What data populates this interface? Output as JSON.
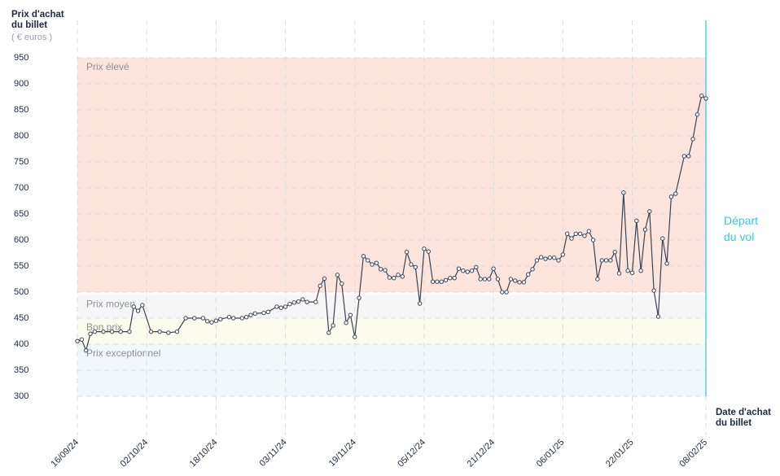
{
  "chart_data": {
    "type": "line",
    "y_title": "Prix d'achat du billet",
    "y_unit": "( € euros )",
    "x_title": "Date d'achat du billet",
    "ylim": [
      300,
      950
    ],
    "yticks": [
      300,
      350,
      400,
      450,
      500,
      550,
      600,
      650,
      700,
      750,
      800,
      850,
      900,
      950
    ],
    "xlim": [
      "2024-09-16",
      "2025-02-08"
    ],
    "xticks": [
      {
        "value": "2024-09-16",
        "label": "16/09/24"
      },
      {
        "value": "2024-10-02",
        "label": "02/10/24"
      },
      {
        "value": "2024-10-18",
        "label": "18/10/24"
      },
      {
        "value": "2024-11-03",
        "label": "03/11/24"
      },
      {
        "value": "2024-11-19",
        "label": "19/11/24"
      },
      {
        "value": "2024-12-05",
        "label": "05/12/24"
      },
      {
        "value": "2024-12-21",
        "label": "21/12/24"
      },
      {
        "value": "2025-01-06",
        "label": "06/01/25"
      },
      {
        "value": "2025-01-22",
        "label": "22/01/25"
      },
      {
        "value": "2025-02-08",
        "label": "08/02/25"
      }
    ],
    "grid": true,
    "bands": [
      {
        "name": "Prix élevé",
        "from": 500,
        "to": 950,
        "color": "#fde5de"
      },
      {
        "name": "Prix moyen",
        "from": 450,
        "to": 495,
        "color": "#f6f6f6"
      },
      {
        "name": "Bon prix",
        "from": 400,
        "to": 450,
        "color": "#fbfbee"
      },
      {
        "name": "Prix exceptionnel",
        "from": 300,
        "to": 400,
        "color": "#f0f8fc"
      }
    ],
    "marker_line": {
      "x": "2025-02-08",
      "label": "Départ du vol",
      "color": "#3ec7e0"
    },
    "series": [
      {
        "color": "#3a4356",
        "x": [
          "2024-09-16",
          "2024-09-17",
          "2024-09-18",
          "2024-09-19",
          "2024-09-20",
          "2024-09-22",
          "2024-09-24",
          "2024-09-26",
          "2024-09-28",
          "2024-09-29",
          "2024-09-30",
          "2024-10-01",
          "2024-10-03",
          "2024-10-05",
          "2024-10-07",
          "2024-10-09",
          "2024-10-11",
          "2024-10-13",
          "2024-10-15",
          "2024-10-16",
          "2024-10-17",
          "2024-10-18",
          "2024-10-19",
          "2024-10-21",
          "2024-10-22",
          "2024-10-24",
          "2024-10-25",
          "2024-10-26",
          "2024-10-27",
          "2024-10-29",
          "2024-10-30",
          "2024-11-01",
          "2024-11-02",
          "2024-11-03",
          "2024-11-04",
          "2024-11-05",
          "2024-11-06",
          "2024-11-07",
          "2024-11-08",
          "2024-11-10",
          "2024-11-11",
          "2024-11-12",
          "2024-11-13",
          "2024-11-14",
          "2024-11-15",
          "2024-11-16",
          "2024-11-17",
          "2024-11-18",
          "2024-11-19",
          "2024-11-20",
          "2024-11-21",
          "2024-11-22",
          "2024-11-23",
          "2024-11-24",
          "2024-11-25",
          "2024-11-26",
          "2024-11-27",
          "2024-11-28",
          "2024-11-29",
          "2024-11-30",
          "2024-12-01",
          "2024-12-02",
          "2024-12-03",
          "2024-12-04",
          "2024-12-05",
          "2024-12-06",
          "2024-12-07",
          "2024-12-08",
          "2024-12-09",
          "2024-12-10",
          "2024-12-11",
          "2024-12-12",
          "2024-12-13",
          "2024-12-14",
          "2024-12-15",
          "2024-12-16",
          "2024-12-17",
          "2024-12-18",
          "2024-12-19",
          "2024-12-20",
          "2024-12-21",
          "2024-12-22",
          "2024-12-23",
          "2024-12-24",
          "2024-12-25",
          "2024-12-26",
          "2024-12-27",
          "2024-12-28",
          "2024-12-29",
          "2024-12-30",
          "2024-12-31",
          "2025-01-01",
          "2025-01-02",
          "2025-01-03",
          "2025-01-04",
          "2025-01-05",
          "2025-01-06",
          "2025-01-07",
          "2025-01-08",
          "2025-01-09",
          "2025-01-10",
          "2025-01-11",
          "2025-01-12",
          "2025-01-13",
          "2025-01-14",
          "2025-01-15",
          "2025-01-16",
          "2025-01-17",
          "2025-01-18",
          "2025-01-19",
          "2025-01-20",
          "2025-01-21",
          "2025-01-22",
          "2025-01-23",
          "2025-01-24",
          "2025-01-25",
          "2025-01-26",
          "2025-01-27",
          "2025-01-28",
          "2025-01-29",
          "2025-01-30",
          "2025-01-31",
          "2025-02-01",
          "2025-02-03",
          "2025-02-04",
          "2025-02-05",
          "2025-02-06",
          "2025-02-07",
          "2025-02-08"
        ],
        "values": [
          406,
          409,
          388,
          420,
          424,
          424,
          424,
          424,
          424,
          472,
          464,
          475,
          424,
          424,
          422,
          424,
          450,
          450,
          450,
          444,
          442,
          445,
          448,
          452,
          450,
          450,
          452,
          456,
          459,
          460,
          462,
          472,
          470,
          472,
          477,
          480,
          482,
          486,
          481,
          481,
          512,
          526,
          422,
          436,
          533,
          516,
          441,
          456,
          414,
          489,
          569,
          561,
          553,
          556,
          544,
          542,
          528,
          527,
          533,
          530,
          577,
          553,
          548,
          478,
          583,
          578,
          520,
          520,
          520,
          523,
          527,
          527,
          545,
          541,
          539,
          541,
          548,
          525,
          525,
          525,
          545,
          525,
          500,
          500,
          525,
          522,
          519,
          519,
          534,
          544,
          561,
          567,
          564,
          566,
          566,
          561,
          572,
          612,
          603,
          612,
          612,
          608,
          617,
          600,
          525,
          561,
          561,
          561,
          577,
          536,
          691,
          541,
          537,
          637,
          541,
          620,
          655,
          503,
          453,
          603,
          555,
          683,
          689,
          761,
          761,
          794,
          841,
          877,
          872
        ]
      }
    ]
  }
}
